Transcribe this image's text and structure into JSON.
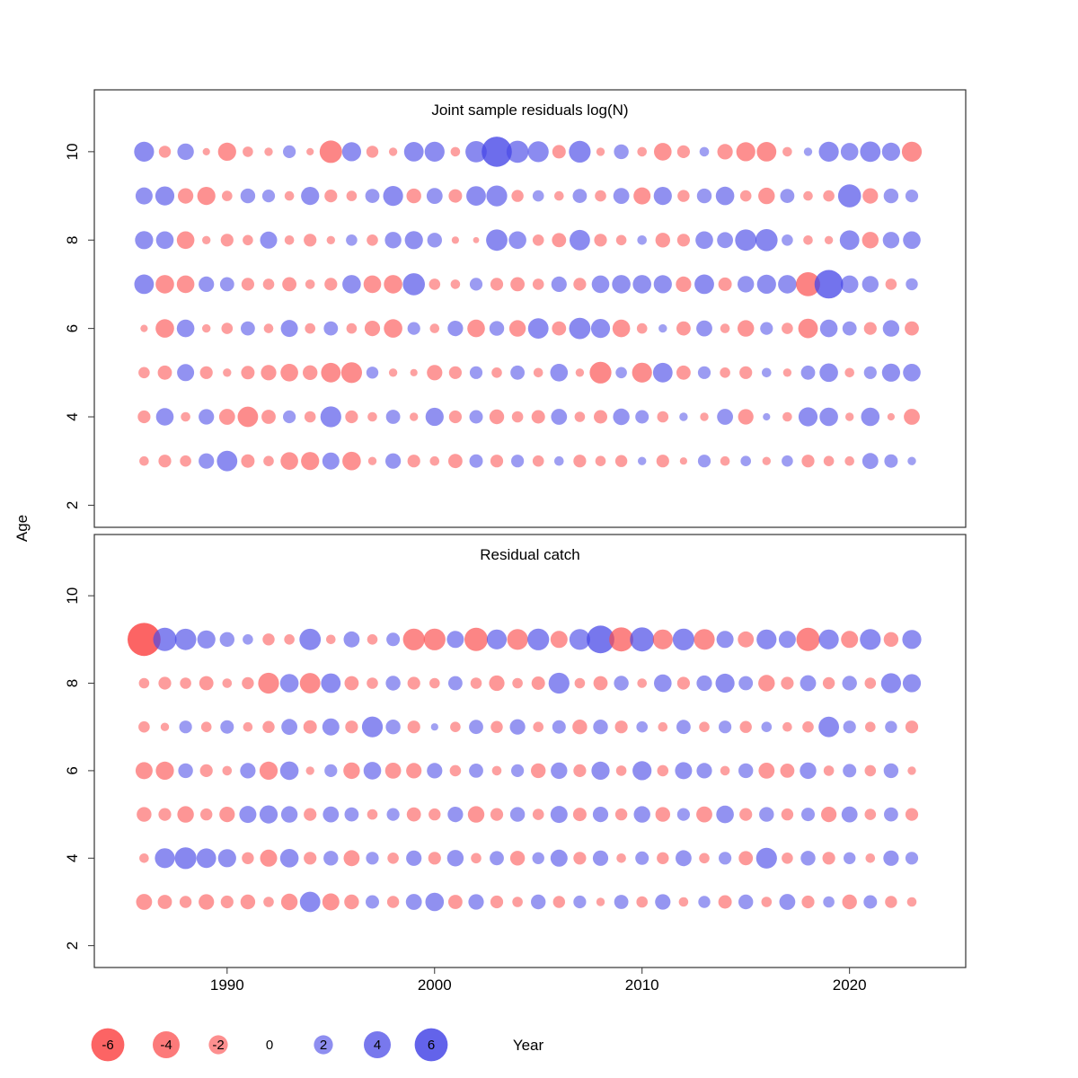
{
  "chart_data": {
    "type": "bubble",
    "description": "Two-panel residual bubble plot; circle area proportional to |residual|, red = negative, blue = positive",
    "xlabel": "Year",
    "ylabel": "Age",
    "x_ticks": [
      1990,
      2000,
      2010,
      2020
    ],
    "y_ticks": [
      2,
      4,
      6,
      8,
      10
    ],
    "xlim": [
      1983.6,
      2025.6
    ],
    "ylim": [
      1.5,
      11.4
    ],
    "grid": false,
    "colors": {
      "negative": "#fb4b4b",
      "positive": "#4949e7",
      "title": "#808080",
      "axis": "#333333"
    },
    "legend": {
      "values": [
        -6,
        -4,
        -2,
        0,
        2,
        4,
        6
      ]
    },
    "years": [
      1986,
      1987,
      1988,
      1989,
      1990,
      1991,
      1992,
      1993,
      1994,
      1995,
      1996,
      1997,
      1998,
      1999,
      2000,
      2001,
      2002,
      2003,
      2004,
      2005,
      2006,
      2007,
      2008,
      2009,
      2010,
      2011,
      2012,
      2013,
      2014,
      2015,
      2016,
      2017,
      2018,
      2019,
      2020,
      2021,
      2022,
      2023
    ],
    "panels": [
      {
        "title": "Joint sample residuals log(N)",
        "rows": [
          {
            "age": 10,
            "values": [
              2.2,
              -0.8,
              1.5,
              -0.3,
              -1.8,
              -0.6,
              -0.4,
              0.9,
              -0.3,
              -2.8,
              2.0,
              -0.8,
              -0.4,
              2.1,
              2.2,
              -0.5,
              2.5,
              5.0,
              2.7,
              2.4,
              -1.0,
              2.6,
              -0.4,
              1.2,
              -0.5,
              -1.7,
              -0.9,
              0.5,
              -1.3,
              -2.0,
              -2.1,
              -0.5,
              0.4,
              2.2,
              1.7,
              2.3,
              1.8,
              -2.2
            ]
          },
          {
            "age": 9,
            "values": [
              1.6,
              2.0,
              -1.3,
              -1.8,
              -0.6,
              1.2,
              0.9,
              -0.5,
              1.8,
              -0.9,
              -0.6,
              1.1,
              2.2,
              -1.2,
              1.4,
              -1.0,
              2.1,
              2.4,
              -0.8,
              0.7,
              -0.5,
              1.1,
              -0.7,
              1.4,
              -1.6,
              1.8,
              -0.8,
              1.2,
              1.9,
              -0.7,
              -1.5,
              1.1,
              -0.5,
              -0.7,
              2.9,
              -1.3,
              1.2,
              0.9
            ]
          },
          {
            "age": 8,
            "values": [
              1.8,
              1.7,
              -1.7,
              -0.4,
              -0.9,
              -0.6,
              1.6,
              -0.5,
              -0.9,
              -0.4,
              0.7,
              -0.7,
              1.5,
              1.8,
              1.2,
              -0.3,
              -0.2,
              2.5,
              1.7,
              -0.7,
              -1.1,
              2.3,
              -0.9,
              -0.6,
              0.5,
              -1.2,
              -0.9,
              1.7,
              1.4,
              2.5,
              2.7,
              0.7,
              -0.5,
              -0.4,
              2.1,
              -1.5,
              1.5,
              1.7
            ]
          },
          {
            "age": 7,
            "values": [
              2.1,
              -1.9,
              -1.7,
              1.3,
              1.1,
              -0.9,
              -0.7,
              -1.1,
              -0.5,
              -0.9,
              1.9,
              -1.7,
              -1.9,
              2.7,
              -0.7,
              -0.5,
              0.9,
              -0.9,
              -1.1,
              -0.7,
              1.3,
              -0.9,
              1.7,
              1.9,
              1.9,
              1.8,
              -1.3,
              2.1,
              -1.0,
              1.5,
              2.0,
              1.9,
              -3.2,
              4.5,
              1.7,
              1.5,
              -0.7,
              0.8
            ]
          },
          {
            "age": 6,
            "values": [
              -0.3,
              -1.9,
              1.7,
              -0.4,
              -0.7,
              1.1,
              -0.5,
              1.6,
              -0.6,
              1.1,
              -0.6,
              -1.3,
              -1.9,
              0.9,
              -0.5,
              1.3,
              -1.7,
              1.2,
              -1.5,
              2.3,
              -1.1,
              2.5,
              2.0,
              -1.7,
              -0.6,
              0.4,
              -1.1,
              1.4,
              -0.5,
              -1.5,
              0.9,
              -0.7,
              -2.1,
              1.7,
              1.1,
              -0.9,
              1.5,
              -1.1
            ]
          },
          {
            "age": 5,
            "values": [
              -0.7,
              -1.1,
              1.6,
              -0.9,
              -0.4,
              -1.0,
              -1.3,
              -1.7,
              -1.2,
              -2.1,
              -2.4,
              0.8,
              -0.4,
              -0.3,
              -1.3,
              -0.9,
              0.9,
              -0.6,
              1.1,
              -0.5,
              1.7,
              -0.4,
              -2.6,
              0.7,
              -2.2,
              2.1,
              -1.1,
              0.9,
              -0.6,
              -0.9,
              0.5,
              -0.4,
              1.1,
              1.9,
              -0.5,
              0.9,
              1.8,
              1.7
            ]
          },
          {
            "age": 4,
            "values": [
              -0.9,
              1.7,
              -0.5,
              1.3,
              -1.4,
              -2.3,
              -1.1,
              0.9,
              -0.7,
              2.4,
              -0.9,
              -0.5,
              1.1,
              -0.4,
              1.8,
              -0.9,
              1.0,
              -1.2,
              -0.7,
              -1.0,
              1.4,
              -0.6,
              -1.0,
              1.5,
              1.0,
              -0.7,
              0.4,
              -0.4,
              1.4,
              -1.3,
              0.3,
              -0.5,
              2.0,
              1.9,
              -0.4,
              1.9,
              -0.3,
              -1.4
            ]
          },
          {
            "age": 3,
            "values": [
              -0.5,
              -0.9,
              -0.7,
              1.3,
              2.3,
              -1.0,
              -0.6,
              -1.7,
              -1.8,
              1.6,
              -1.9,
              -0.4,
              1.3,
              -0.9,
              -0.5,
              -1.1,
              1.0,
              -0.9,
              0.9,
              -0.7,
              0.5,
              -0.9,
              -0.6,
              -0.8,
              0.4,
              -0.9,
              -0.3,
              0.9,
              -0.5,
              0.6,
              -0.4,
              0.7,
              -0.9,
              -0.6,
              -0.5,
              1.4,
              1.0,
              0.4
            ]
          }
        ]
      },
      {
        "title": "Residual catch",
        "rows": [
          {
            "age": 9,
            "values": [
              -6.0,
              3.0,
              2.5,
              1.8,
              1.2,
              0.6,
              -0.8,
              -0.6,
              2.5,
              -0.5,
              1.4,
              -0.6,
              1.0,
              -2.6,
              -2.6,
              1.6,
              -3.0,
              2.2,
              -2.4,
              2.6,
              -1.6,
              2.4,
              4.2,
              -3.2,
              3.2,
              -2.2,
              2.6,
              -2.4,
              1.6,
              -1.4,
              2.2,
              1.6,
              -3.0,
              2.2,
              -1.6,
              2.4,
              -1.2,
              2.0
            ]
          },
          {
            "age": 8,
            "values": [
              -0.6,
              -0.9,
              -0.7,
              -1.1,
              -0.5,
              -0.8,
              -2.4,
              1.9,
              -2.3,
              2.1,
              -1.1,
              -0.7,
              1.2,
              -0.9,
              -0.6,
              1.1,
              -0.7,
              -1.3,
              -0.6,
              -1.0,
              2.4,
              -0.6,
              -1.1,
              1.2,
              -0.5,
              1.7,
              -0.9,
              1.3,
              2.0,
              1.1,
              -1.5,
              -0.9,
              1.4,
              -0.8,
              1.2,
              -0.7,
              2.2,
              1.8
            ]
          },
          {
            "age": 7,
            "values": [
              -0.7,
              -0.4,
              0.9,
              -0.6,
              1.0,
              -0.5,
              -0.8,
              1.4,
              -1.0,
              1.6,
              -0.9,
              2.4,
              1.2,
              -0.9,
              0.3,
              -0.6,
              1.1,
              -0.8,
              1.3,
              -0.6,
              1.0,
              -1.2,
              1.2,
              -0.9,
              0.7,
              -0.5,
              1.1,
              -0.6,
              0.9,
              -0.8,
              0.6,
              -0.5,
              -0.7,
              2.3,
              0.9,
              -0.6,
              0.8,
              -0.9
            ]
          },
          {
            "age": 6,
            "values": [
              -1.6,
              -1.8,
              1.2,
              -0.9,
              -0.5,
              1.3,
              -1.8,
              1.9,
              -0.4,
              0.9,
              -1.5,
              1.7,
              -1.4,
              -1.3,
              1.3,
              -0.7,
              1.1,
              -0.5,
              0.9,
              -1.2,
              1.5,
              -0.9,
              1.8,
              -0.6,
              2.0,
              -0.7,
              1.6,
              1.3,
              -0.5,
              1.2,
              -1.4,
              -1.1,
              1.5,
              -0.6,
              1.0,
              -0.7,
              1.2,
              -0.4
            ]
          },
          {
            "age": 5,
            "values": [
              -1.2,
              -0.9,
              -1.5,
              -0.8,
              -1.3,
              1.6,
              1.8,
              1.5,
              -0.9,
              1.4,
              1.1,
              -0.6,
              0.9,
              -1.1,
              -0.8,
              1.3,
              -1.5,
              -0.9,
              1.2,
              -0.7,
              1.6,
              -1.0,
              1.3,
              -0.8,
              1.5,
              -1.2,
              0.9,
              -1.4,
              1.7,
              -0.9,
              1.2,
              -0.8,
              1.0,
              -1.3,
              1.4,
              -0.7,
              1.1,
              -0.9
            ]
          },
          {
            "age": 4,
            "values": [
              -0.5,
              2.2,
              2.6,
              2.1,
              1.8,
              -0.8,
              -1.6,
              1.9,
              -0.9,
              1.2,
              -1.4,
              0.9,
              -0.7,
              1.3,
              -0.9,
              1.5,
              -0.6,
              1.1,
              -1.2,
              0.8,
              1.6,
              -0.9,
              1.3,
              -0.5,
              1.0,
              -0.8,
              1.4,
              -0.6,
              0.9,
              -1.1,
              2.4,
              -0.7,
              1.2,
              -0.9,
              0.8,
              -0.5,
              1.3,
              0.9
            ]
          },
          {
            "age": 3,
            "values": [
              -1.4,
              -1.1,
              -0.8,
              -1.3,
              -0.9,
              -1.2,
              -0.6,
              -1.5,
              2.3,
              -1.6,
              -1.2,
              1.0,
              -0.8,
              1.4,
              1.9,
              -1.1,
              1.3,
              -0.9,
              -0.6,
              1.2,
              -0.8,
              0.9,
              -0.4,
              1.1,
              -0.7,
              1.3,
              -0.5,
              0.8,
              -1.0,
              1.2,
              -0.6,
              1.4,
              -0.9,
              0.7,
              -1.2,
              1.0,
              -0.8,
              -0.5
            ]
          }
        ]
      }
    ]
  }
}
